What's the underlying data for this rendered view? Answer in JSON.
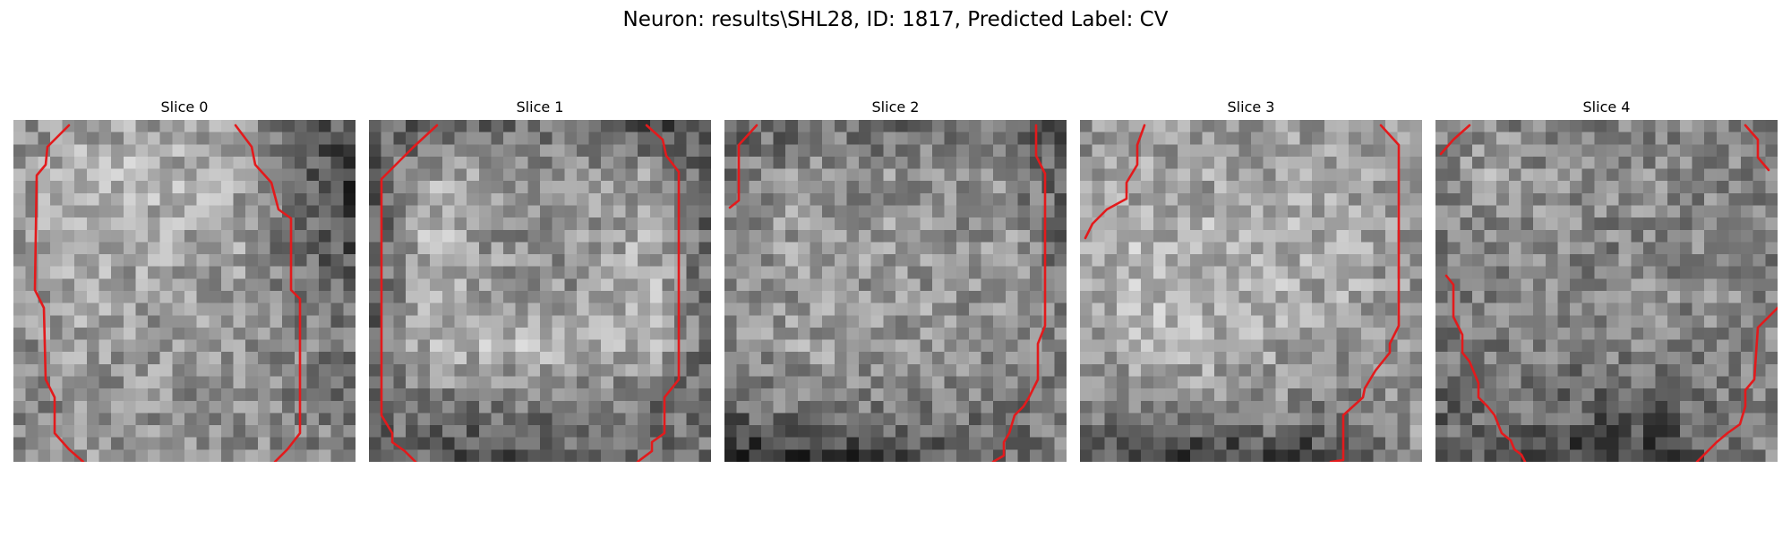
{
  "figure": {
    "title": "Neuron: results\\SHL28, ID: 1817, Predicted Label: CV"
  },
  "colors": {
    "contour": "#e31a1c",
    "background": "#ffffff",
    "colormap": "gray"
  },
  "panels": [
    {
      "title": "Slice 0",
      "image": "grayscale-pixel-patch",
      "contour_segments": 2
    },
    {
      "title": "Slice 1",
      "image": "grayscale-pixel-patch",
      "contour_segments": 2
    },
    {
      "title": "Slice 2",
      "image": "grayscale-pixel-patch",
      "contour_segments": 3
    },
    {
      "title": "Slice 3",
      "image": "grayscale-pixel-patch",
      "contour_segments": 3
    },
    {
      "title": "Slice 4",
      "image": "grayscale-pixel-patch",
      "contour_segments": 4
    }
  ]
}
